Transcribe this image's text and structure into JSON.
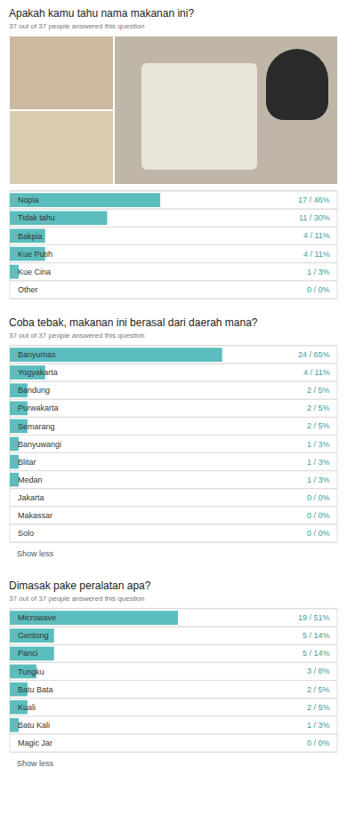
{
  "chart_data": [
    {
      "type": "bar",
      "orientation": "horizontal",
      "title": "Apakah kamu tahu nama makanan ini?",
      "subtitle": "37 out of 37 people answered this question",
      "categories": [
        "Nopia",
        "Tidak tahu",
        "Bakpia",
        "Kue Putih",
        "Kue Cina",
        "Other"
      ],
      "values": [
        17,
        11,
        4,
        4,
        1,
        0
      ],
      "value_labels": [
        "17 / 46%",
        "11 / 30%",
        "4 / 11%",
        "4 / 11%",
        "1 / 3%",
        "0 / 0%"
      ],
      "data_labels": true,
      "color": "#5bbdbd",
      "xlim": [
        0,
        37
      ],
      "xticks": [],
      "tick_labels": "y",
      "grid": false
    },
    {
      "type": "bar",
      "orientation": "horizontal",
      "title": "Coba tebak, makanan ini berasal dari daerah mana?",
      "subtitle": "37 out of 37 people answered this question",
      "categories": [
        "Banyumas",
        "Yogyakarta",
        "Bandung",
        "Purwakarta",
        "Semarang",
        "Banyuwangi",
        "Blitar",
        "Medan",
        "Jakarta",
        "Makassar",
        "Solo"
      ],
      "values": [
        24,
        4,
        2,
        2,
        2,
        1,
        1,
        1,
        0,
        0,
        0
      ],
      "value_labels": [
        "24 / 65%",
        "4 / 11%",
        "2 / 5%",
        "2 / 5%",
        "2 / 5%",
        "1 / 3%",
        "1 / 3%",
        "1 / 3%",
        "0 / 0%",
        "0 / 0%",
        "0 / 0%"
      ],
      "data_labels": true,
      "color": "#5bbdbd",
      "xlim": [
        0,
        37
      ],
      "xticks": [],
      "tick_labels": "y",
      "grid": false,
      "annotations": [
        "Show less"
      ]
    },
    {
      "type": "bar",
      "orientation": "horizontal",
      "title": "Dimasak pake peralatan apa?",
      "subtitle": "37 out of 37 people answered this question",
      "categories": [
        "Microwave",
        "Gentong",
        "Panci",
        "Tungku",
        "Batu Bata",
        "Kuali",
        "Batu Kali",
        "Magic Jar"
      ],
      "values": [
        19,
        5,
        5,
        3,
        2,
        2,
        1,
        0
      ],
      "value_labels": [
        "19 / 51%",
        "5 / 14%",
        "5 / 14%",
        "3 / 8%",
        "2 / 5%",
        "2 / 5%",
        "1 / 3%",
        "0 / 0%"
      ],
      "data_labels": true,
      "color": "#5bbdbd",
      "xlim": [
        0,
        37
      ],
      "xticks": [],
      "tick_labels": "y",
      "grid": false,
      "annotations": [
        "Show less"
      ]
    }
  ]
}
